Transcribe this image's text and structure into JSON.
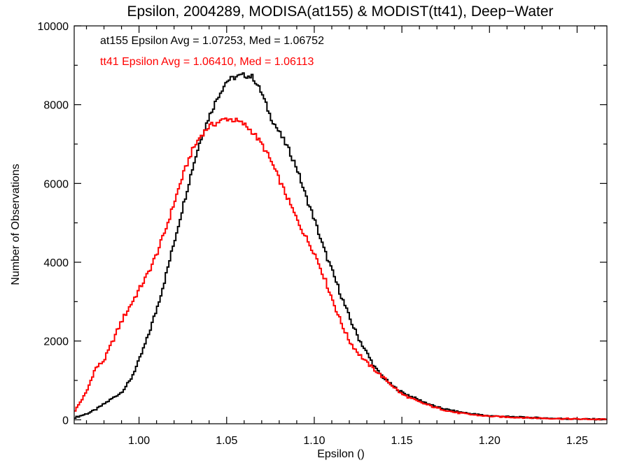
{
  "chart_data": {
    "type": "line",
    "title": "Epsilon, 2004289, MODISA(at155) & MODIST(tt41), Deep−Water",
    "xlabel": "Epsilon ()",
    "ylabel": "Number of Observations",
    "xlim": [
      0.963,
      1.267
    ],
    "ylim": [
      -100,
      10000
    ],
    "x_ticks": [
      1.0,
      1.05,
      1.1,
      1.15,
      1.2,
      1.25
    ],
    "x_tick_labels": [
      "1.00",
      "1.05",
      "1.10",
      "1.15",
      "1.20",
      "1.25"
    ],
    "y_ticks": [
      0,
      2000,
      4000,
      6000,
      8000,
      10000
    ],
    "y_tick_labels": [
      "0",
      "2000",
      "4000",
      "6000",
      "8000",
      "10000"
    ],
    "grid": false,
    "annotations": [
      {
        "text": "at155 Epsilon Avg = 1.07253, Med = 1.06752",
        "color": "#000000"
      },
      {
        "text": "tt41 Epsilon Avg = 1.06410, Med = 1.06113",
        "color": "#ff0000"
      }
    ],
    "series": [
      {
        "color": "#000000",
        "x": [
          0.963,
          0.97,
          0.975,
          0.98,
          0.985,
          0.99,
          0.995,
          1.0,
          1.005,
          1.01,
          1.015,
          1.02,
          1.025,
          1.03,
          1.035,
          1.04,
          1.045,
          1.05,
          1.055,
          1.06,
          1.065,
          1.07,
          1.075,
          1.08,
          1.085,
          1.09,
          1.095,
          1.1,
          1.105,
          1.11,
          1.115,
          1.12,
          1.125,
          1.13,
          1.135,
          1.14,
          1.145,
          1.15,
          1.155,
          1.16,
          1.17,
          1.18,
          1.19,
          1.2,
          1.21,
          1.22,
          1.23,
          1.24,
          1.25,
          1.26,
          1.267
        ],
        "y": [
          50,
          150,
          250,
          400,
          550,
          700,
          1000,
          1500,
          2100,
          2800,
          3600,
          4500,
          5400,
          6300,
          7100,
          7700,
          8200,
          8600,
          8700,
          8750,
          8700,
          8300,
          7700,
          7300,
          6900,
          6400,
          5700,
          5100,
          4400,
          3800,
          3200,
          2600,
          2100,
          1700,
          1300,
          1050,
          850,
          700,
          600,
          500,
          320,
          220,
          150,
          100,
          80,
          60,
          45,
          30,
          20,
          15,
          10
        ]
      },
      {
        "color": "#ff0000",
        "x": [
          0.963,
          0.97,
          0.975,
          0.98,
          0.985,
          0.99,
          0.995,
          1.0,
          1.005,
          1.01,
          1.015,
          1.02,
          1.025,
          1.03,
          1.035,
          1.04,
          1.045,
          1.05,
          1.055,
          1.06,
          1.065,
          1.07,
          1.075,
          1.08,
          1.085,
          1.09,
          1.095,
          1.1,
          1.105,
          1.11,
          1.115,
          1.12,
          1.125,
          1.13,
          1.135,
          1.14,
          1.145,
          1.15,
          1.155,
          1.16,
          1.17,
          1.18,
          1.19,
          1.2,
          1.21,
          1.22,
          1.23,
          1.24,
          1.25,
          1.26,
          1.267
        ],
        "y": [
          200,
          700,
          1300,
          1500,
          2000,
          2500,
          2900,
          3300,
          3700,
          4200,
          4800,
          5500,
          6200,
          6800,
          7200,
          7450,
          7550,
          7650,
          7600,
          7500,
          7300,
          7000,
          6600,
          6100,
          5600,
          5100,
          4650,
          4250,
          3700,
          3100,
          2500,
          2000,
          1700,
          1450,
          1250,
          1050,
          850,
          650,
          550,
          450,
          300,
          190,
          130,
          90,
          70,
          55,
          40,
          30,
          20,
          15,
          10
        ]
      }
    ]
  }
}
